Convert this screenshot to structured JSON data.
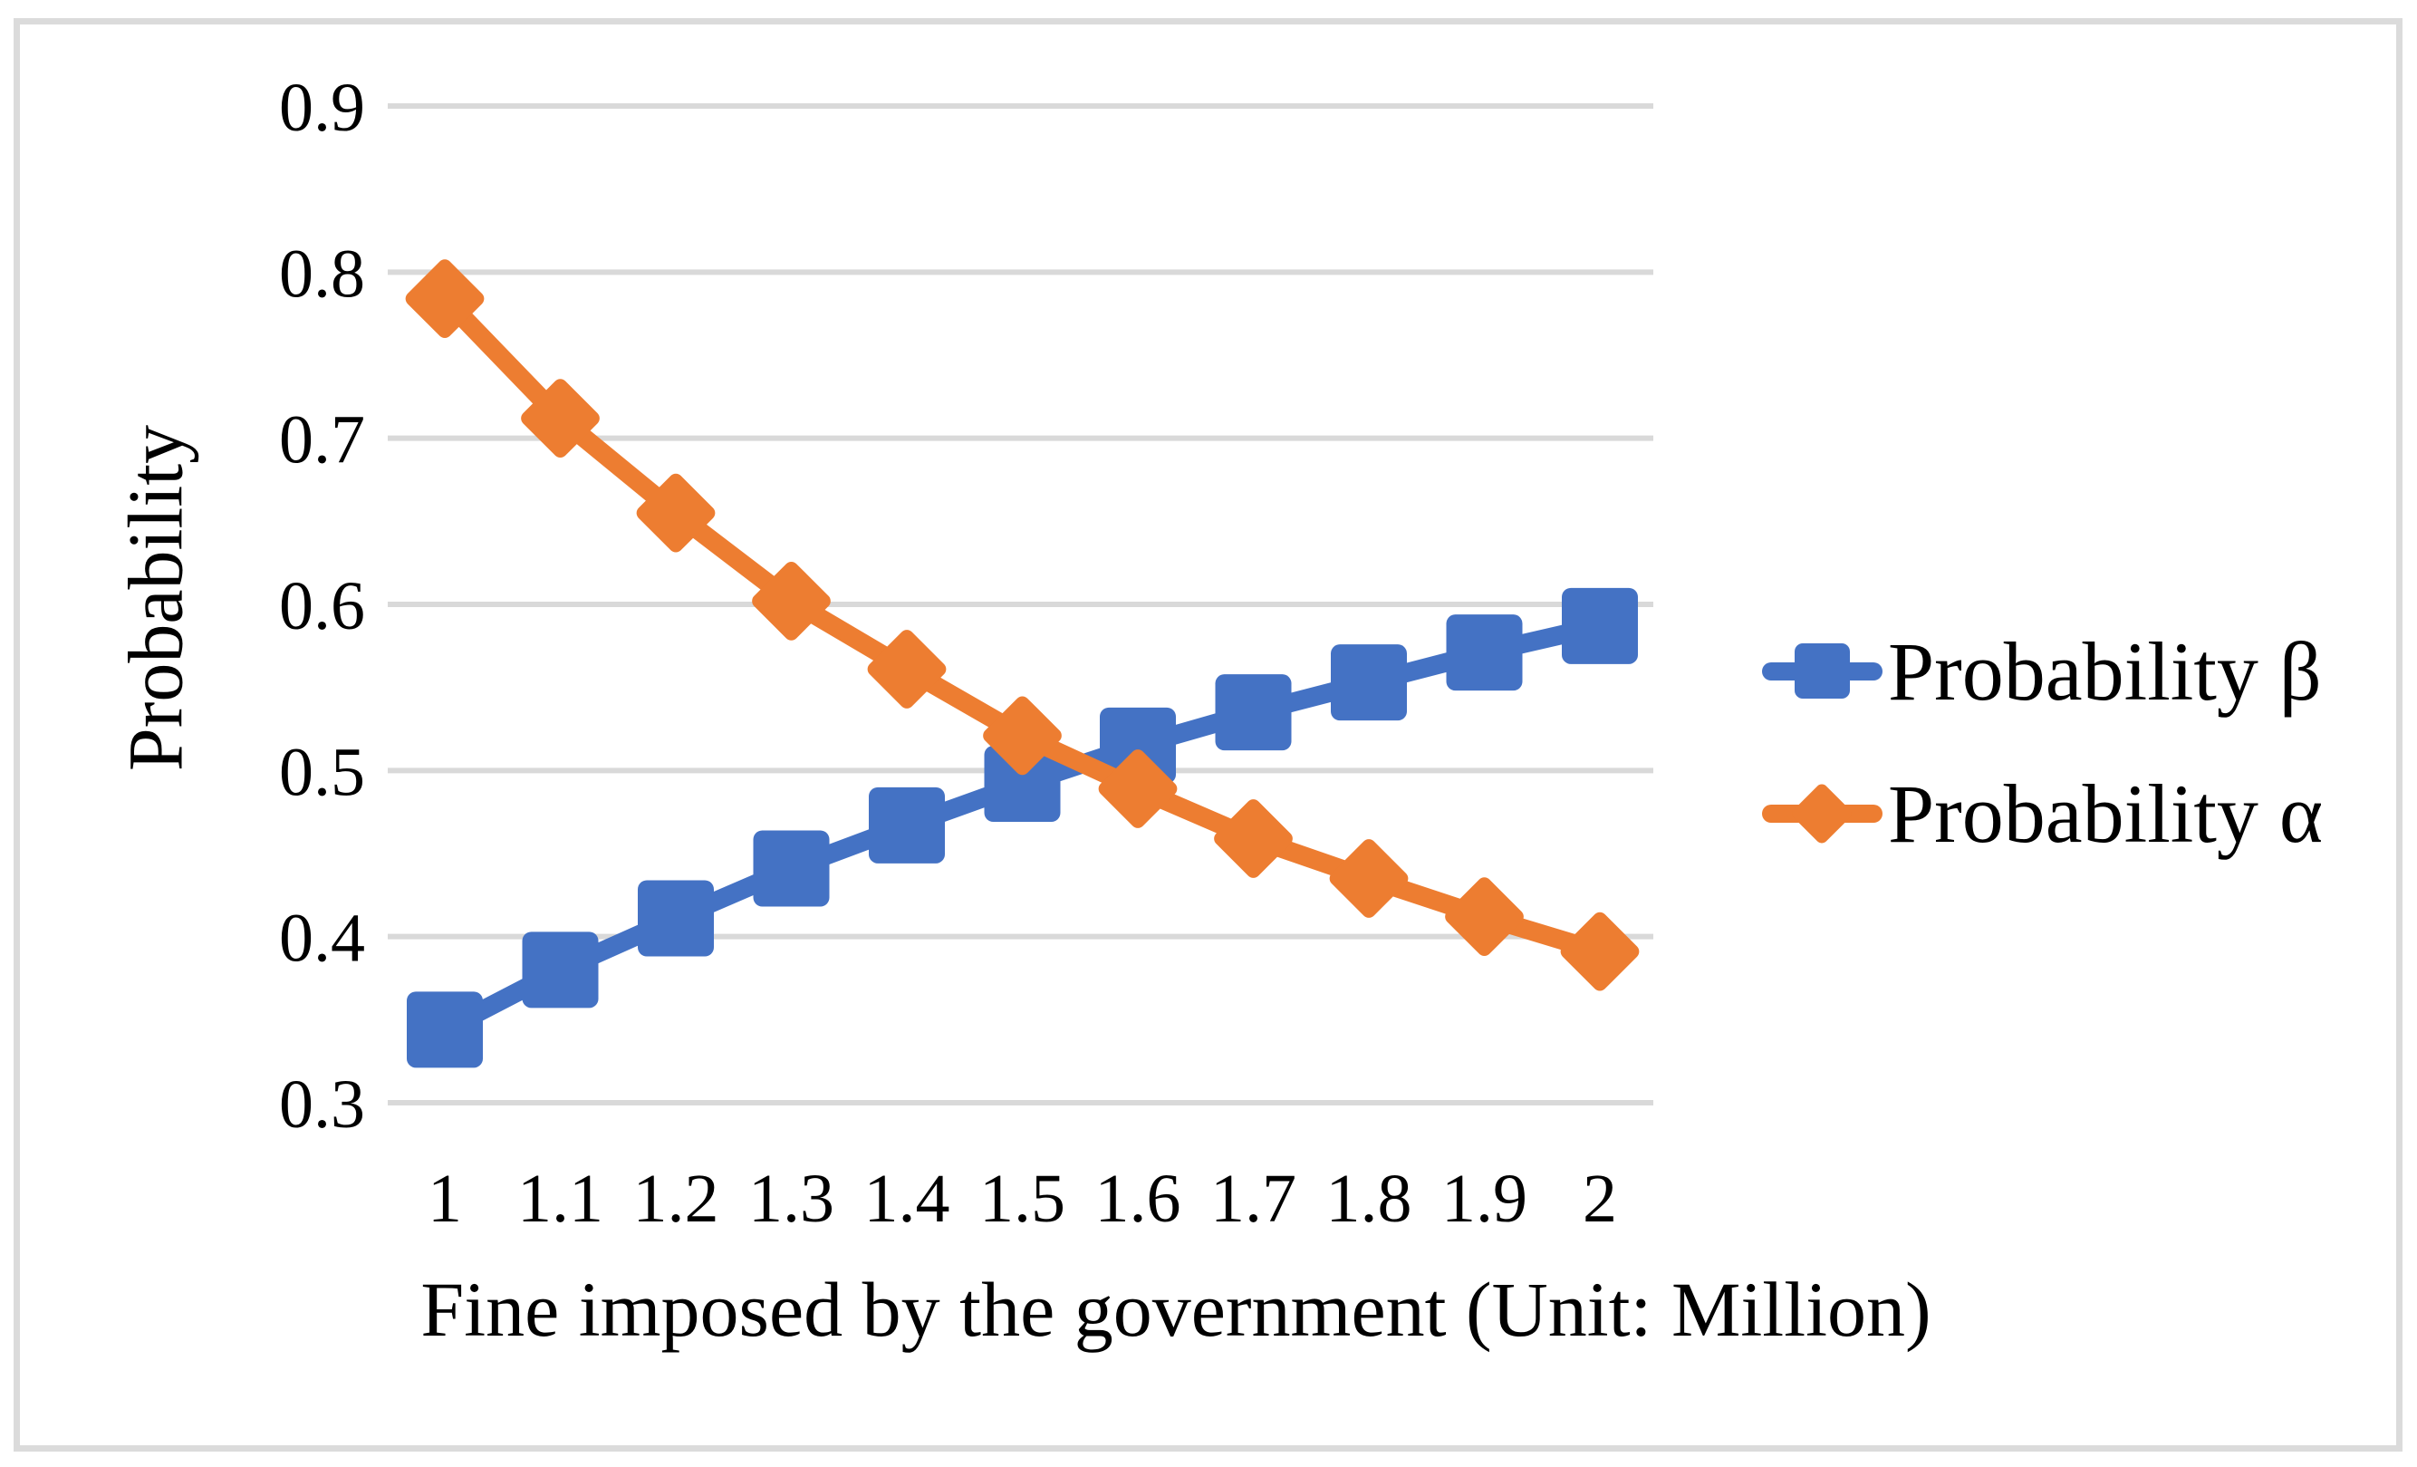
{
  "figure": {
    "border_color": "#DBDBDB",
    "background_color": "#FFFFFF"
  },
  "chart_data": {
    "type": "line",
    "title": "",
    "xlabel": "Fine imposed by the government (Unit: Million)",
    "ylabel": "Probability",
    "categories": [
      1,
      1.1,
      1.2,
      1.3,
      1.4,
      1.5,
      1.6,
      1.7,
      1.8,
      1.9,
      2
    ],
    "x_tick_labels": [
      "1",
      "1.1",
      "1.2",
      "1.3",
      "1.4",
      "1.5",
      "1.6",
      "1.7",
      "1.8",
      "1.9",
      "2"
    ],
    "y_ticks": [
      0.3,
      0.4,
      0.5,
      0.6,
      0.7,
      0.8,
      0.9
    ],
    "y_tick_labels": [
      "0.3",
      "0.4",
      "0.5",
      "0.6",
      "0.7",
      "0.8",
      "0.9"
    ],
    "ylim": [
      0.3,
      0.9
    ],
    "grid": "horizontal",
    "gridline_color": "#D9D9D9",
    "legend_position": "right",
    "series": [
      {
        "name": "Probability β",
        "color": "#4472C4",
        "marker": "square",
        "values": [
          0.344,
          0.38,
          0.411,
          0.441,
          0.467,
          0.492,
          0.515,
          0.535,
          0.553,
          0.571,
          0.587
        ]
      },
      {
        "name": "Probability α",
        "color": "#ED7D31",
        "marker": "diamond",
        "values": [
          0.784,
          0.712,
          0.655,
          0.602,
          0.561,
          0.521,
          0.489,
          0.459,
          0.435,
          0.412,
          0.391
        ]
      }
    ]
  }
}
